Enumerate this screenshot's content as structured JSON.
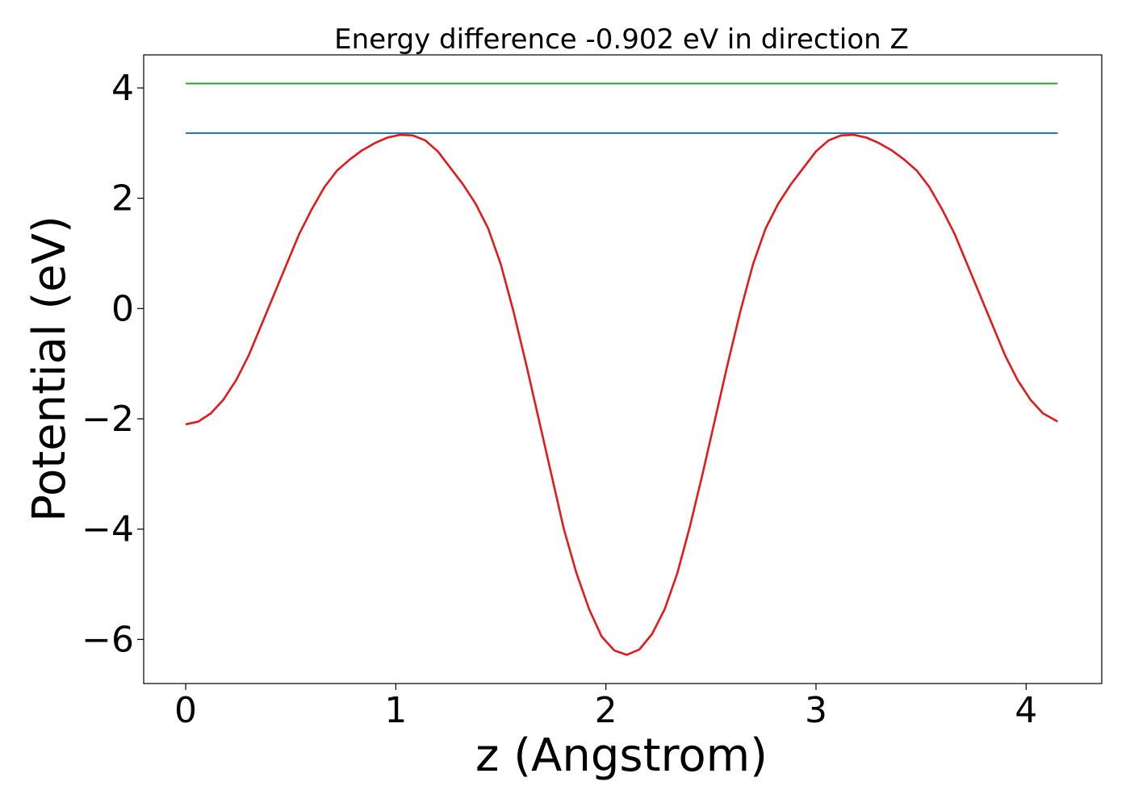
{
  "chart_data": {
    "type": "line",
    "title": "Energy difference -0.902 eV in direction Z",
    "xlabel": "z (Angstrom)",
    "ylabel": "Potential (eV)",
    "xlim": [
      -0.2,
      4.36
    ],
    "ylim": [
      -6.8,
      4.6
    ],
    "xticks": [
      0,
      1,
      2,
      3,
      4
    ],
    "xtick_labels": [
      "0",
      "1",
      "2",
      "3",
      "4"
    ],
    "yticks": [
      4,
      2,
      0,
      -2,
      -4,
      -6
    ],
    "ytick_labels": [
      "4",
      "2",
      "0",
      "−2",
      "−4",
      "−6"
    ],
    "grid": false,
    "series": [
      {
        "color": "#2ca02c",
        "x": [
          0,
          4.15
        ],
        "y": [
          4.08,
          4.08
        ]
      },
      {
        "color": "#1f77b4",
        "x": [
          0,
          4.15
        ],
        "y": [
          3.18,
          3.18
        ]
      },
      {
        "color": "#e31a1c",
        "x": [
          0,
          0.06,
          0.12,
          0.18,
          0.24,
          0.3,
          0.36,
          0.42,
          0.48,
          0.54,
          0.6,
          0.66,
          0.72,
          0.78,
          0.84,
          0.9,
          0.96,
          1.02,
          1.08,
          1.14,
          1.2,
          1.26,
          1.32,
          1.38,
          1.44,
          1.5,
          1.56,
          1.62,
          1.68,
          1.74,
          1.8,
          1.86,
          1.92,
          1.98,
          2.04,
          2.1,
          2.16,
          2.22,
          2.28,
          2.34,
          2.4,
          2.46,
          2.52,
          2.58,
          2.64,
          2.7,
          2.76,
          2.82,
          2.88,
          2.94,
          3.0,
          3.06,
          3.12,
          3.18,
          3.24,
          3.3,
          3.36,
          3.42,
          3.48,
          3.54,
          3.6,
          3.66,
          3.72,
          3.78,
          3.84,
          3.9,
          3.96,
          4.02,
          4.08,
          4.15
        ],
        "y": [
          -2.1,
          -2.05,
          -1.9,
          -1.65,
          -1.3,
          -0.85,
          -0.3,
          0.25,
          0.8,
          1.35,
          1.8,
          2.2,
          2.5,
          2.7,
          2.87,
          3.0,
          3.1,
          3.15,
          3.14,
          3.05,
          2.85,
          2.55,
          2.25,
          1.9,
          1.45,
          0.8,
          -0.05,
          -1.0,
          -2.0,
          -3.0,
          -4.0,
          -4.8,
          -5.45,
          -5.95,
          -6.2,
          -6.28,
          -6.18,
          -5.9,
          -5.45,
          -4.8,
          -3.95,
          -3.0,
          -2.0,
          -1.0,
          -0.05,
          0.8,
          1.45,
          1.9,
          2.25,
          2.55,
          2.85,
          3.05,
          3.14,
          3.15,
          3.1,
          3.0,
          2.87,
          2.7,
          2.5,
          2.2,
          1.8,
          1.35,
          0.8,
          0.25,
          -0.3,
          -0.85,
          -1.3,
          -1.65,
          -1.9,
          -2.05
        ]
      }
    ]
  }
}
